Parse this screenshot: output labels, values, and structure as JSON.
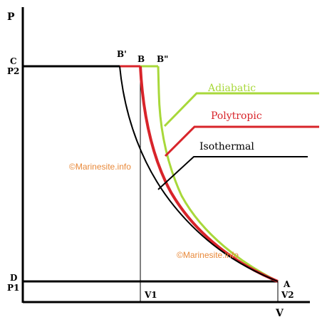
{
  "axes": {
    "y_label": "P",
    "x_label": "V"
  },
  "points": {
    "c": "C",
    "p2": "P2",
    "d": "D",
    "p1": "P1",
    "b_prime": "B'",
    "b": "B",
    "b_double_prime": "B\"",
    "a": "A",
    "v1": "V1",
    "v2": "V2"
  },
  "curves": {
    "adiabatic": "Adiabatic",
    "polytropic": "Polytropic",
    "isothermal": "Isothermal"
  },
  "watermarks": [
    "©Marinesite.info",
    "©Marinesite.info"
  ],
  "colors": {
    "adiabatic": "#a8d83a",
    "polytropic": "#d8242a",
    "isothermal": "#000000",
    "watermark": "#e8893a"
  }
}
